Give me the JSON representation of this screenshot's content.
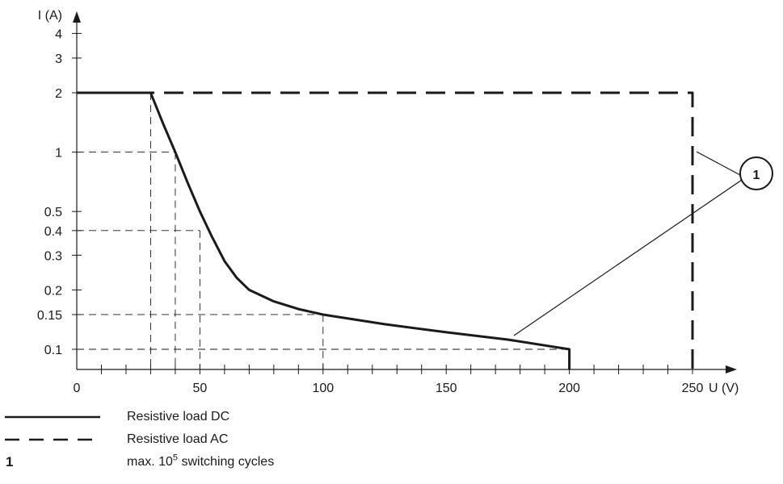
{
  "chart_data": {
    "type": "line",
    "xlabel": "U (V)",
    "ylabel": "I (A)",
    "x_ticks": [
      0,
      50,
      100,
      150,
      200,
      250
    ],
    "x_minor_step": 10,
    "xlim": [
      0,
      260
    ],
    "y_scale": "log",
    "y_ticks": [
      0.1,
      0.15,
      0.2,
      0.3,
      0.4,
      0.5,
      1,
      2,
      3,
      4
    ],
    "y_tick_labels": [
      "0.1",
      "0.15",
      "0.2",
      "0.3",
      "0.4",
      "0.5",
      "1",
      "2",
      "3",
      "4"
    ],
    "ylim": [
      0.08,
      5
    ],
    "grid": false,
    "series": [
      {
        "name": "Resistive load DC",
        "style": "solid",
        "x": [
          0,
          30,
          35,
          40,
          45,
          50,
          55,
          60,
          65,
          70,
          80,
          90,
          100,
          125,
          150,
          175,
          200,
          200
        ],
        "y": [
          2,
          2,
          1.4,
          1.0,
          0.7,
          0.5,
          0.37,
          0.28,
          0.23,
          0.2,
          0.175,
          0.16,
          0.15,
          0.134,
          0.122,
          0.112,
          0.1,
          0.08
        ]
      },
      {
        "name": "Resistive load AC",
        "style": "dashed",
        "x": [
          0,
          250,
          250
        ],
        "y": [
          2,
          2,
          0.08
        ]
      }
    ],
    "reference_lines": [
      {
        "x": 30,
        "y": 2
      },
      {
        "x": 40,
        "y": 1
      },
      {
        "x": 50,
        "y": 0.4
      },
      {
        "x": 100,
        "y": 0.15
      },
      {
        "x": 200,
        "y": 0.1
      }
    ],
    "annotation": {
      "label": "1"
    }
  },
  "legend": {
    "dc_label": "Resistive load DC",
    "ac_label": "Resistive load AC",
    "note_number": "1",
    "note_prefix": "max. 10",
    "note_exponent": "5",
    "note_suffix": " switching cycles"
  }
}
